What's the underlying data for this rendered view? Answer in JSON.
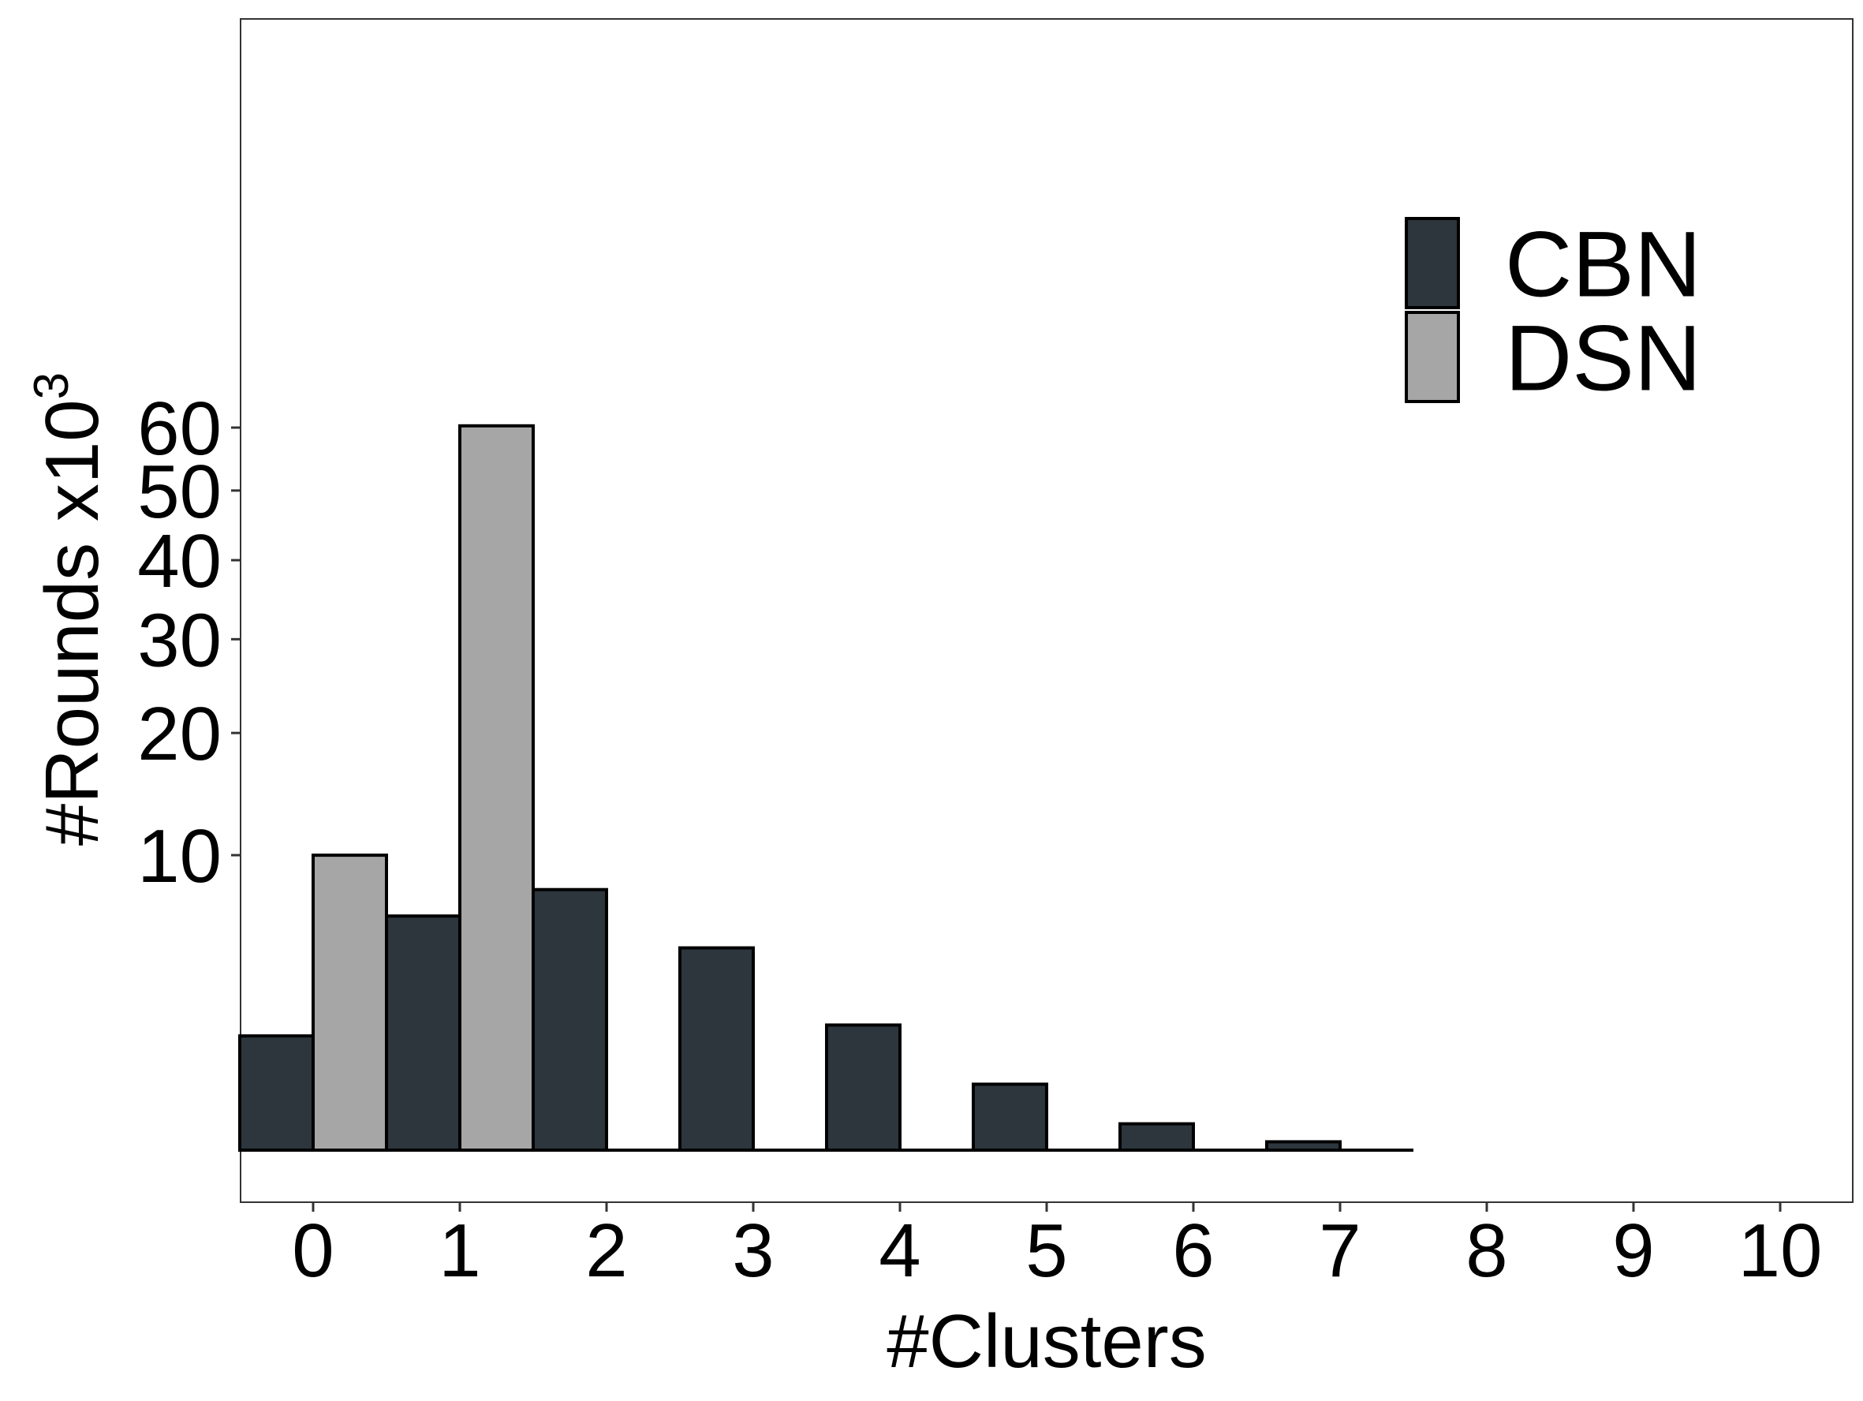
{
  "chart_data": {
    "type": "bar",
    "xlabel": "#Clusters",
    "ylabel": "#Rounds x10",
    "ylabel_superscript": "3",
    "x_ticks": [
      "0",
      "1",
      "2",
      "3",
      "4",
      "5",
      "6",
      "7",
      "8",
      "9",
      "10"
    ],
    "y_ticks": [
      "10",
      "20",
      "30",
      "40",
      "50",
      "60"
    ],
    "y_tick_values": [
      10,
      20,
      30,
      40,
      50,
      60
    ],
    "y_scale": "sqrt",
    "xlim": [
      -0.5,
      10.5
    ],
    "ylim": [
      0,
      66
    ],
    "grid": false,
    "legend_position": "top-right",
    "series": [
      {
        "name": "CBN",
        "color": "#2d363d",
        "points": [
          {
            "x": 0,
            "y": 1.5
          },
          {
            "x": 1,
            "y": 6.3
          },
          {
            "x": 2,
            "y": 7.8
          },
          {
            "x": 3,
            "y": 4.7
          },
          {
            "x": 4,
            "y": 1.8
          },
          {
            "x": 5,
            "y": 0.5
          },
          {
            "x": 6,
            "y": 0.08
          },
          {
            "x": 7,
            "y": 0.008
          }
        ]
      },
      {
        "name": "DSN",
        "color": "#a6a6a6",
        "points": [
          {
            "x": 0,
            "y": 10.0
          },
          {
            "x": 1,
            "y": 60.3
          }
        ]
      }
    ]
  }
}
